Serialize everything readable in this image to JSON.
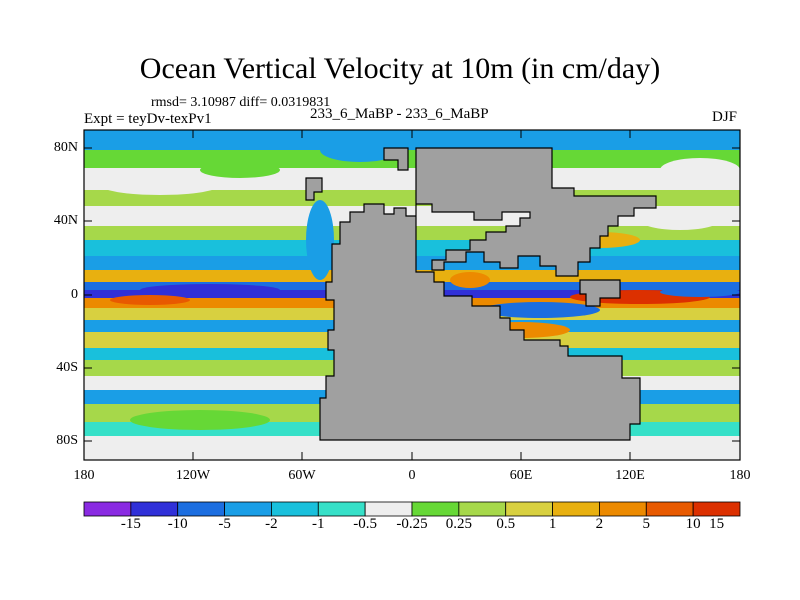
{
  "title": "Ocean Vertical Velocity at 10m (in cm/day)",
  "stats": "rmsd= 3.10987 diff= 0.0319831",
  "experiment": "Expt = teyDv-texPv1",
  "run_label": "233_6_MaBP - 233_6_MaBP",
  "season": "DJF",
  "map": {
    "lat_ticks": [
      "80N",
      "40N",
      "0",
      "40S",
      "80S"
    ],
    "lon_ticks": [
      "180",
      "120W",
      "60W",
      "0",
      "60E",
      "120E",
      "180"
    ],
    "land_color": "#a0a0a0"
  },
  "colorbar": {
    "colors": [
      "#8a2be2",
      "#3030d8",
      "#1c6ee0",
      "#1a9ee6",
      "#19c0dc",
      "#36e0c8",
      "#eeeeee",
      "#66d836",
      "#a6d84a",
      "#d8d040",
      "#e8b010",
      "#ec8a00",
      "#e85a00",
      "#dc3000"
    ],
    "labels": [
      "-15",
      "-10",
      "-5",
      "-2",
      "-1",
      "-0.5",
      "-0.25",
      "0.25",
      "0.5",
      "1",
      "2",
      "5",
      "10",
      "15"
    ]
  }
}
